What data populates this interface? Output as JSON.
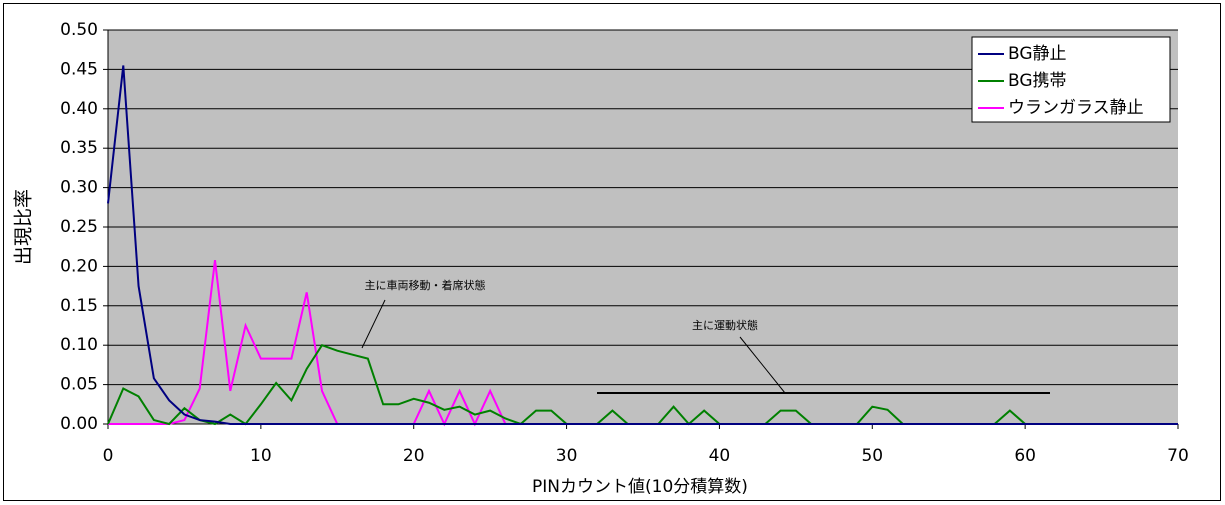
{
  "chart_data": {
    "type": "line",
    "xlabel": "PINカウント値(10分積算数)",
    "ylabel": "出現比率",
    "x": [
      0,
      1,
      2,
      3,
      4,
      5,
      6,
      7,
      8,
      9,
      10,
      11,
      12,
      13,
      14,
      15,
      16,
      17,
      18,
      19,
      20,
      21,
      22,
      23,
      24,
      25,
      26,
      27,
      28,
      29,
      30,
      31,
      32,
      33,
      34,
      35,
      36,
      37,
      38,
      39,
      40,
      41,
      42,
      43,
      44,
      45,
      46,
      47,
      48,
      49,
      50,
      51,
      52,
      53,
      54,
      55,
      56,
      57,
      58,
      59,
      60,
      61,
      62,
      63,
      64,
      65,
      66,
      67,
      68,
      69,
      70
    ],
    "series": [
      {
        "name": "BG静止",
        "color": "#000080",
        "values": [
          0.28,
          0.455,
          0.175,
          0.058,
          0.03,
          0.012,
          0.005,
          0.003,
          0,
          0,
          0,
          0,
          0,
          0,
          0,
          0,
          0,
          0,
          0,
          0,
          0,
          0,
          0,
          0,
          0,
          0,
          0,
          0,
          0,
          0,
          0,
          0,
          0,
          0,
          0,
          0,
          0,
          0,
          0,
          0,
          0,
          0,
          0,
          0,
          0,
          0,
          0,
          0,
          0,
          0,
          0,
          0,
          0,
          0,
          0,
          0,
          0,
          0,
          0,
          0,
          0,
          0,
          0,
          0,
          0,
          0,
          0,
          0,
          0,
          0,
          0
        ]
      },
      {
        "name": "BG携帯",
        "color": "#008000",
        "values": [
          0,
          0.045,
          0.035,
          0.005,
          0,
          0.02,
          0.005,
          0,
          0.012,
          0,
          0.025,
          0.052,
          0.03,
          0.07,
          0.1,
          0.093,
          0.088,
          0.083,
          0.025,
          0.025,
          0.032,
          0.027,
          0.018,
          0.022,
          0.012,
          0.017,
          0.007,
          0,
          0.017,
          0.017,
          0,
          0,
          0,
          0.017,
          0,
          0,
          0,
          0.022,
          0,
          0.017,
          0,
          0,
          0,
          0,
          0.017,
          0.017,
          0,
          0,
          0,
          0,
          0.022,
          0.018,
          0,
          0,
          0,
          0,
          0,
          0,
          0,
          0.017,
          0,
          0,
          0,
          0,
          0,
          0,
          0,
          0,
          0,
          0,
          0
        ]
      },
      {
        "name": "ウランガラス静止",
        "color": "#ff00ff",
        "values": [
          0,
          0,
          0,
          0,
          0,
          0.005,
          0.045,
          0.208,
          0.042,
          0.125,
          0.083,
          0.083,
          0.083,
          0.167,
          0.042,
          0,
          0,
          0,
          0,
          0,
          0,
          0.042,
          0,
          0.042,
          0,
          0.042,
          0,
          0,
          0,
          0,
          0,
          0,
          0,
          0,
          0,
          0,
          0,
          0,
          0,
          0,
          0,
          0,
          0,
          0,
          0,
          0,
          0,
          0,
          0,
          0,
          0,
          0,
          0,
          0,
          0,
          0,
          0,
          0,
          0,
          0,
          0,
          0,
          0,
          0,
          0,
          0,
          0,
          0,
          0,
          0,
          0
        ]
      }
    ],
    "annotations": [
      "主に車両移動・着席状態",
      "主に運動状態"
    ],
    "xlim": [
      0,
      70
    ],
    "xticks": [
      0,
      10,
      20,
      30,
      40,
      50,
      60,
      70
    ],
    "ylim": [
      0,
      0.5
    ],
    "yticks": [
      {
        "value": 0,
        "label": "0.00"
      },
      {
        "value": 0.05,
        "label": "0.05"
      },
      {
        "value": 0.1,
        "label": "0.10"
      },
      {
        "value": 0.15,
        "label": "0.15"
      },
      {
        "value": 0.2,
        "label": "0.20"
      },
      {
        "value": 0.25,
        "label": "0.25"
      },
      {
        "value": 0.3,
        "label": "0.30"
      },
      {
        "value": 0.35,
        "label": "0.35"
      },
      {
        "value": 0.4,
        "label": "0.40"
      },
      {
        "value": 0.45,
        "label": "0.45"
      },
      {
        "value": 0.5,
        "label": "0.50"
      }
    ],
    "grid": true,
    "legend": "top-right",
    "plot_background": "#c0c0c0"
  }
}
